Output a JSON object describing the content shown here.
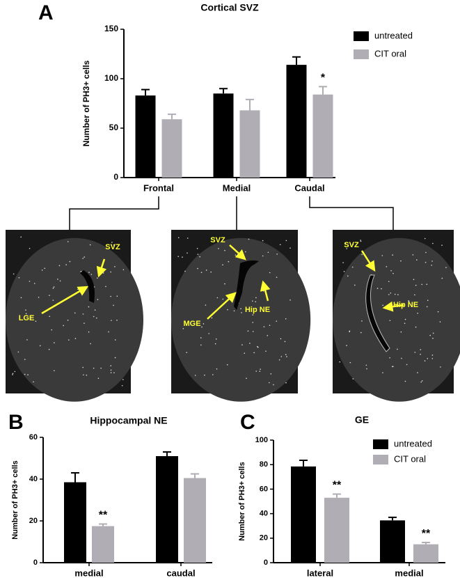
{
  "chart_data": [
    {
      "type": "bar",
      "panel_label": "A",
      "title": "Cortical SVZ",
      "ylabel": "Number of PH3+ cells",
      "categories": [
        "Frontal",
        "Medial",
        "Caudal"
      ],
      "series": [
        {
          "name": "untreated",
          "color": "#000000",
          "values": [
            83,
            85,
            114
          ],
          "errors": [
            6,
            5,
            8
          ],
          "significance": [
            null,
            null,
            null
          ]
        },
        {
          "name": "CIT oral",
          "color": "#b0adb5",
          "values": [
            59,
            68,
            84
          ],
          "errors": [
            5,
            11,
            8
          ],
          "significance": [
            null,
            null,
            "*"
          ]
        }
      ],
      "ylim": [
        0,
        150
      ],
      "yticks": [
        0,
        50,
        100,
        150
      ],
      "legend": true
    },
    {
      "type": "bar",
      "panel_label": "B",
      "title": "Hippocampal NE",
      "ylabel": "Number of PH3+ cells",
      "categories": [
        "medial",
        "caudal"
      ],
      "series": [
        {
          "name": "untreated",
          "color": "#000000",
          "values": [
            38.5,
            51
          ],
          "errors": [
            4.5,
            2
          ],
          "significance": [
            null,
            null
          ]
        },
        {
          "name": "CIT oral",
          "color": "#b0adb5",
          "values": [
            17.5,
            40.5
          ],
          "errors": [
            1,
            2
          ],
          "significance": [
            "**",
            null
          ]
        }
      ],
      "ylim": [
        0,
        60
      ],
      "yticks": [
        0,
        20,
        40,
        60
      ],
      "legend": false
    },
    {
      "type": "bar",
      "panel_label": "C",
      "title": "GE",
      "ylabel": "Number of PH3+ cells",
      "categories": [
        "lateral",
        "medial"
      ],
      "series": [
        {
          "name": "untreated",
          "color": "#000000",
          "values": [
            78.5,
            34.5
          ],
          "errors": [
            5,
            2.5
          ],
          "significance": [
            null,
            null
          ]
        },
        {
          "name": "CIT oral",
          "color": "#b0adb5",
          "values": [
            53,
            15
          ],
          "errors": [
            3,
            1.5
          ],
          "significance": [
            "**",
            "**"
          ]
        }
      ],
      "ylim": [
        0,
        100
      ],
      "yticks": [
        0,
        20,
        40,
        60,
        80,
        100
      ],
      "legend": true
    }
  ],
  "images": [
    {
      "labels": [
        "SVZ",
        "LGE"
      ]
    },
    {
      "labels": [
        "SVZ",
        "MGE",
        "Hip NE"
      ]
    },
    {
      "labels": [
        "SVZ",
        "Hip NE"
      ]
    }
  ]
}
